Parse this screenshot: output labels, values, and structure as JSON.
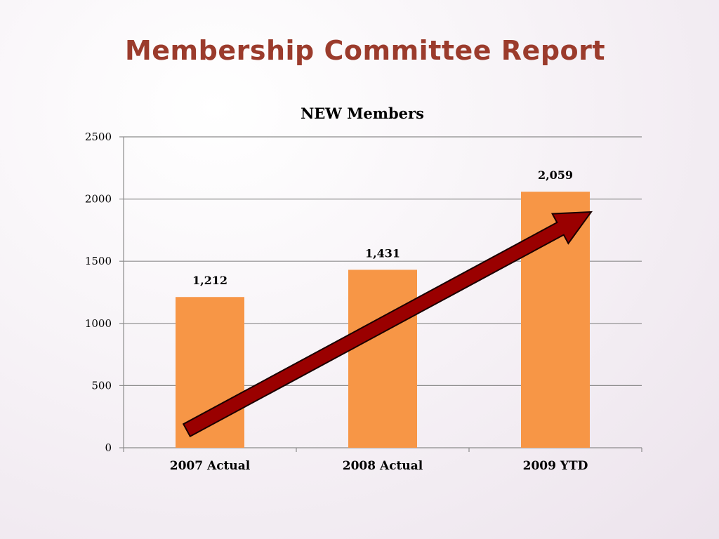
{
  "slide": {
    "title": "Membership Committee Report"
  },
  "chart_data": {
    "type": "bar",
    "title": "NEW Members",
    "categories": [
      "2007 Actual",
      "2008 Actual",
      "2009 YTD"
    ],
    "values": [
      1212,
      1431,
      2059
    ],
    "data_labels": [
      "1,212",
      "1,431",
      "2,059"
    ],
    "ylim": [
      0,
      2500
    ],
    "yticks": [
      0,
      500,
      1000,
      1500,
      2000,
      2500
    ],
    "xlabel": "",
    "ylabel": "",
    "grid": true,
    "legend": "none",
    "colors": {
      "bar": "#f79646",
      "grid": "#8c8c8c",
      "arrow_fill": "#9a0000",
      "arrow_stroke": "#1a0000"
    },
    "annotations": [
      "upward-trend-arrow"
    ]
  }
}
